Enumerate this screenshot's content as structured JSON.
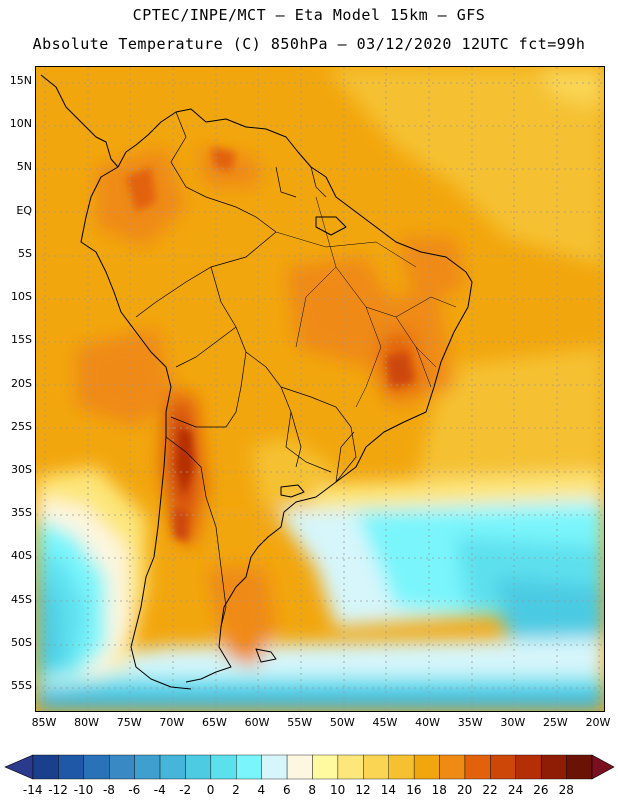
{
  "header": {
    "title_line1": "CPTEC/INPE/MCT –  Eta Model 15km – GFS",
    "title_line2": "Absolute Temperature (C) 850hPa – 03/12/2020 12UTC fct=99h"
  },
  "map": {
    "lat_labels": [
      "15N",
      "10N",
      "5N",
      "EQ",
      "5S",
      "10S",
      "15S",
      "20S",
      "25S",
      "30S",
      "35S",
      "40S",
      "45S",
      "50S",
      "55S"
    ],
    "lon_labels": [
      "85W",
      "80W",
      "75W",
      "70W",
      "65W",
      "60W",
      "55W",
      "50W",
      "45W",
      "40W",
      "35W",
      "30W",
      "25W",
      "20W"
    ],
    "lat_values": [
      15,
      10,
      5,
      0,
      -5,
      -10,
      -15,
      -20,
      -25,
      -30,
      -35,
      -40,
      -45,
      -50,
      -55
    ],
    "lon_values": [
      -85,
      -80,
      -75,
      -70,
      -65,
      -60,
      -55,
      -50,
      -45,
      -40,
      -35,
      -30,
      -25,
      -20
    ],
    "variable": "Absolute Temperature (C) 850hPa"
  },
  "colorbar": {
    "labels": [
      "-14",
      "-12",
      "-10",
      "-8",
      "-6",
      "-4",
      "-2",
      "0",
      "2",
      "4",
      "6",
      "8",
      "10",
      "12",
      "14",
      "16",
      "18",
      "20",
      "22",
      "24",
      "26",
      "28"
    ],
    "colors": [
      "#1a3f8c",
      "#1f58a6",
      "#2a72b8",
      "#3889c4",
      "#3f9fcf",
      "#45b5da",
      "#4ccbe3",
      "#5de0ee",
      "#79f5fb",
      "#d6f6fb",
      "#fdf6e0",
      "#fffaa0",
      "#fde67a",
      "#fad554",
      "#f5c131",
      "#f2a60d",
      "#ef8a15",
      "#e2620b",
      "#cc4708",
      "#b52f06",
      "#8f1d05",
      "#6a1204"
    ],
    "under_color": "#2a3a8c",
    "over_color": "#7a0f20"
  }
}
